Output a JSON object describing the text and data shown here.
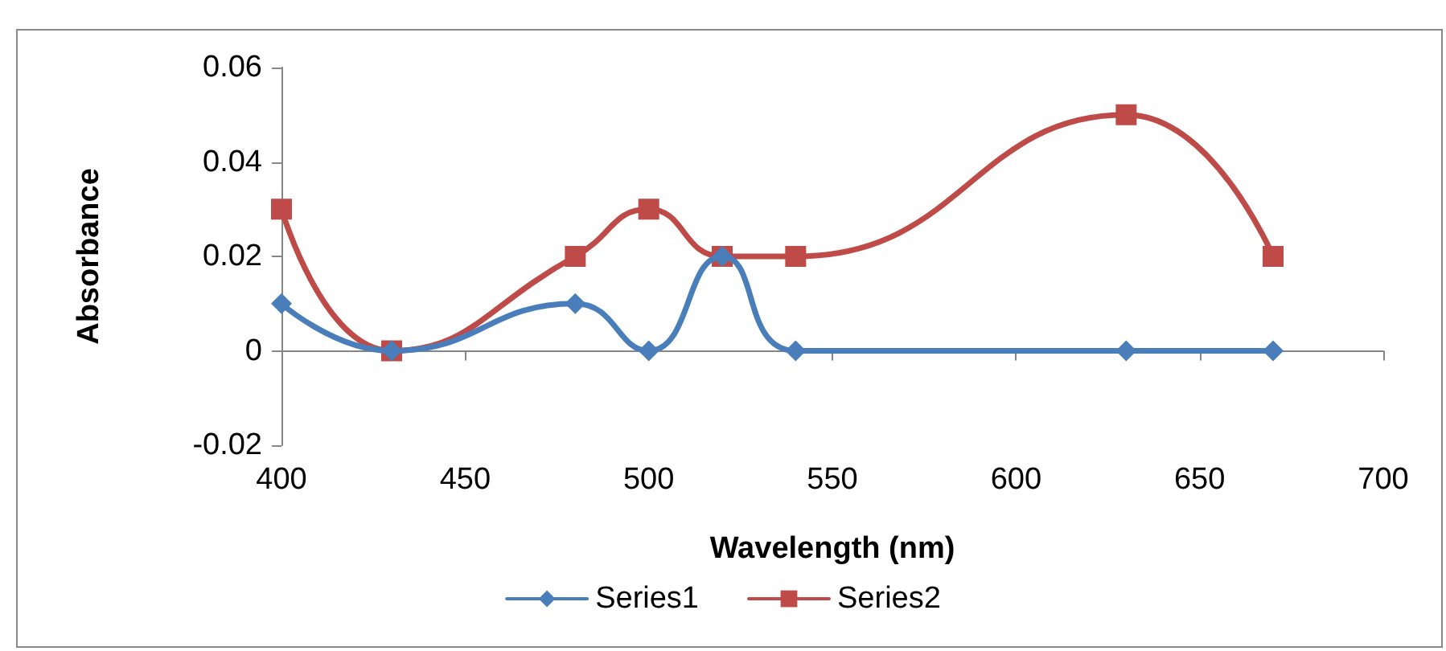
{
  "chart_data": {
    "type": "line",
    "xlabel": "Wavelength (nm)",
    "ylabel": "Absorbance",
    "x": [
      400,
      430,
      480,
      500,
      520,
      540,
      630,
      670
    ],
    "series": [
      {
        "name": "Series1",
        "color": "#4a7ebb",
        "marker": "diamond",
        "values": [
          0.01,
          0,
          0.01,
          0,
          0.02,
          0,
          0,
          0
        ]
      },
      {
        "name": "Series2",
        "color": "#be4b48",
        "marker": "square",
        "values": [
          0.03,
          0,
          0.02,
          0.03,
          0.02,
          0.02,
          0.05,
          0.02
        ]
      }
    ],
    "xlim": [
      400,
      700
    ],
    "xticks": [
      400,
      450,
      500,
      550,
      600,
      650,
      700
    ],
    "ylim": [
      -0.02,
      0.06
    ],
    "yticks": [
      -0.02,
      0,
      0.02,
      0.04,
      0.06
    ],
    "legend": "bottom",
    "line_style": "solid"
  }
}
